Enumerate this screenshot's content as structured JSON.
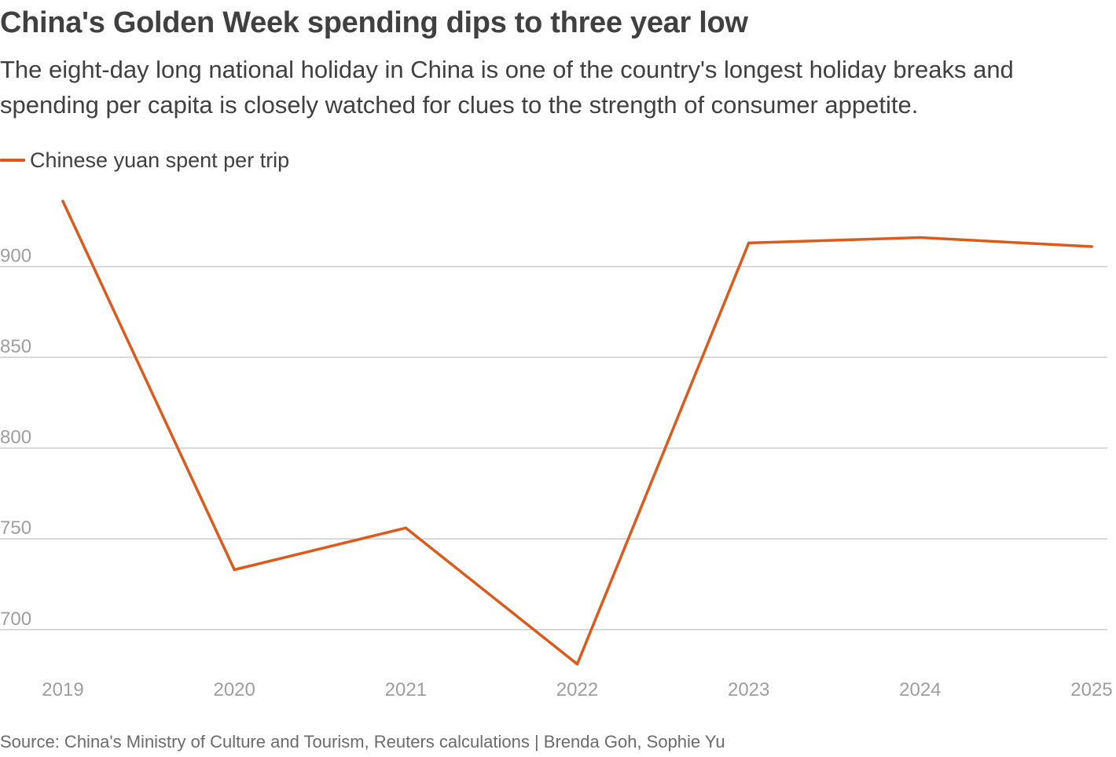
{
  "header": {
    "title": "China's Golden Week spending dips to three year low",
    "subtitle": "The eight-day long national holiday in China is one of the country's longest holiday breaks and spending per capita is closely watched for clues to the strength of consumer appetite."
  },
  "legend": {
    "label": "Chinese yuan spent per trip"
  },
  "colors": {
    "line": "#dc5a1b",
    "grid": "#cccccc",
    "tick": "#9e9e9e"
  },
  "footer": {
    "source": "Source: China's Ministry of Culture and Tourism, Reuters calculations | Brenda Goh, Sophie Yu"
  },
  "chart_data": {
    "type": "line",
    "title": "China's Golden Week spending dips to three year low",
    "xlabel": "",
    "ylabel": "",
    "categories": [
      "2019",
      "2020",
      "2021",
      "2022",
      "2023",
      "2024",
      "2025"
    ],
    "series": [
      {
        "name": "Chinese yuan spent per trip",
        "values": [
          936,
          733,
          756,
          681,
          913,
          916,
          911
        ]
      }
    ],
    "yticks": [
      700,
      750,
      800,
      850,
      900
    ],
    "ytick_labels": [
      "700",
      "750",
      "800",
      "850",
      "900"
    ],
    "ylim": [
      680,
      940
    ],
    "grid": true,
    "legend": "top-left"
  }
}
